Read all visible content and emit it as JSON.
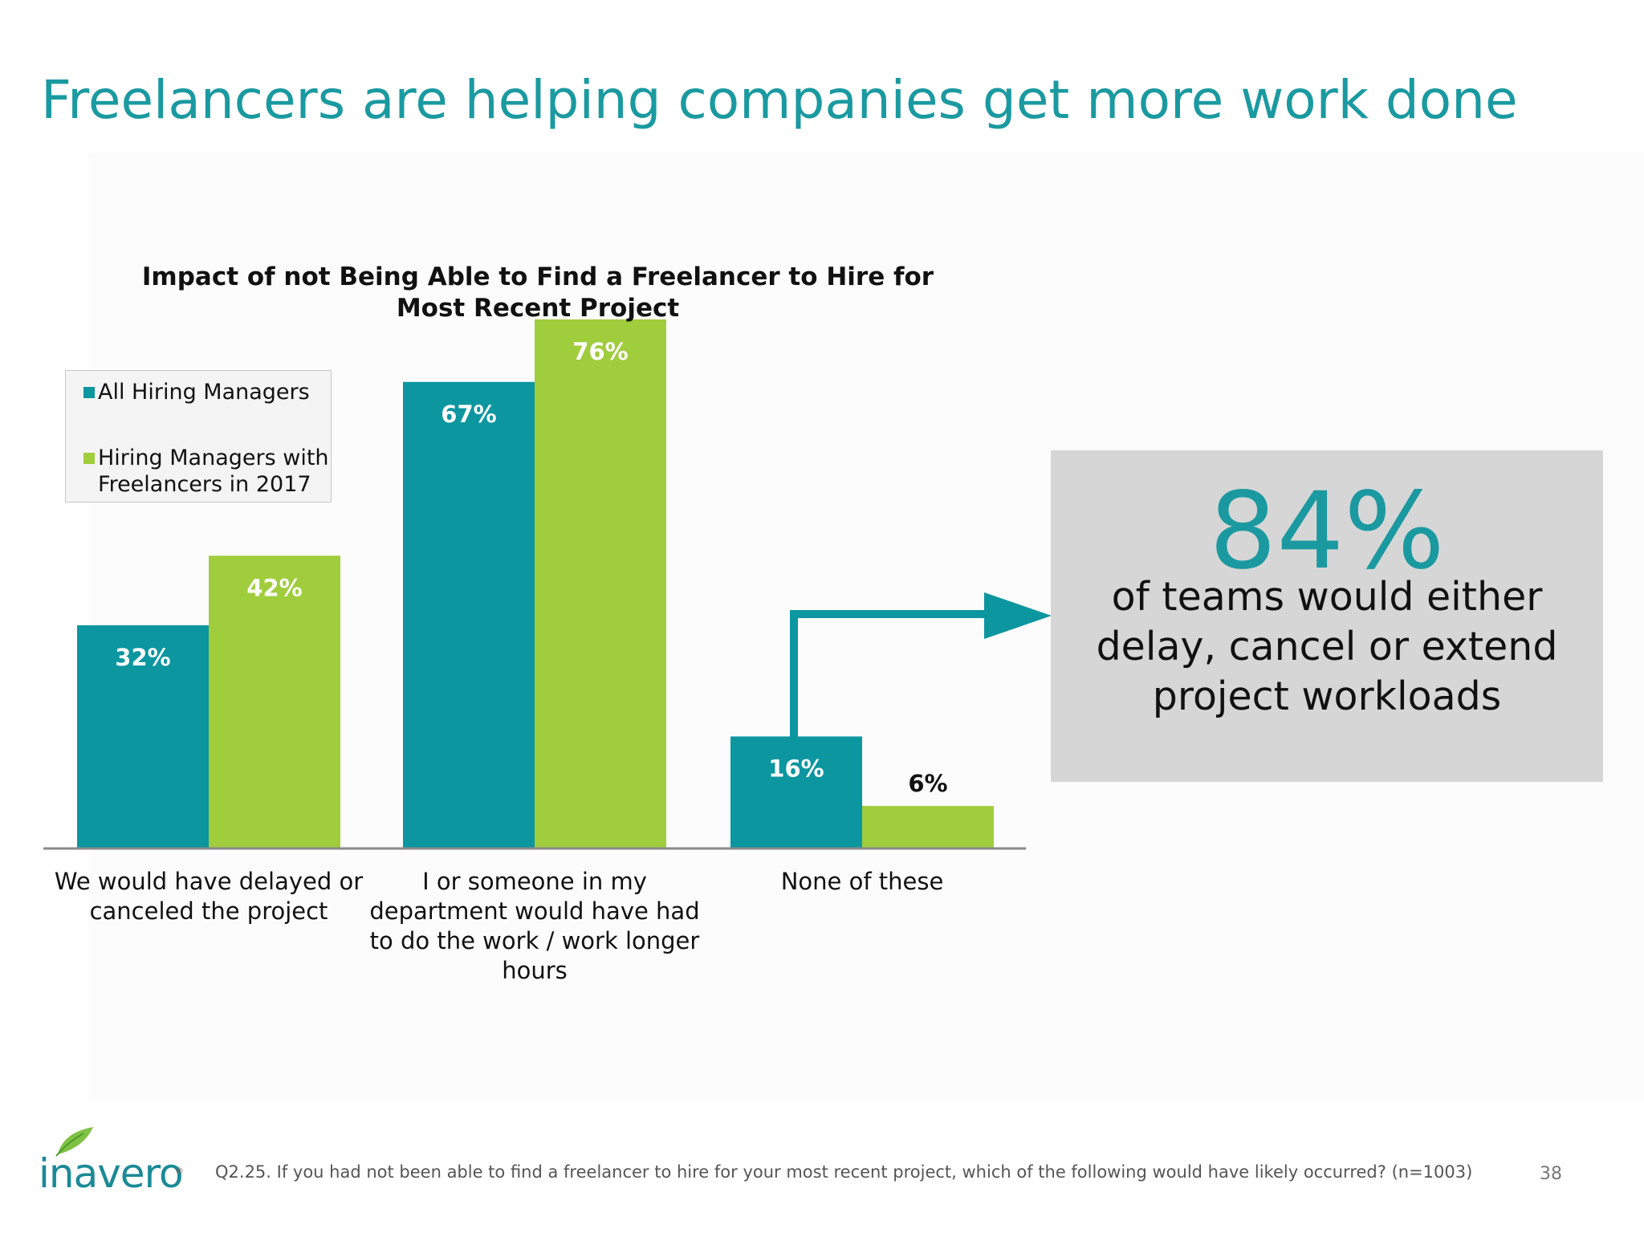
{
  "slide": {
    "title": "Freelancers are helping companies get more work done",
    "footnote": "Q2.25. If you had not been able to find a freelancer to hire for your most recent project, which of the following would have likely occurred? (n=1003)",
    "page_number": "38",
    "logo_text": "inavero",
    "logo_reg": "®"
  },
  "callout": {
    "value": "84%",
    "lines": [
      "of teams would either",
      "delay, cancel or extend",
      "project workloads"
    ]
  },
  "colors": {
    "teal": "#0b96a0",
    "green": "#a0cd3c",
    "title": "#1a9aa0",
    "callout_bg": "#d6d6d6",
    "axis": "#8a8a8a"
  },
  "chart_data": {
    "type": "bar",
    "title_lines": [
      "Impact of not Being Able to Find a Freelancer to Hire for",
      "Most Recent Project"
    ],
    "categories": [
      [
        "We would have delayed or",
        "canceled the project"
      ],
      [
        "I or someone in my",
        "department would have had",
        "to do the work / work longer",
        "hours"
      ],
      [
        "None of these"
      ]
    ],
    "series": [
      {
        "name": "All Hiring Managers",
        "values": [
          32,
          67,
          16
        ],
        "labels": [
          "32%",
          "67%",
          "16%"
        ],
        "color": "#0b96a0"
      },
      {
        "name": "Hiring Managers with Freelancers in 2017",
        "values": [
          42,
          76,
          6
        ],
        "labels": [
          "42%",
          "76%",
          "6%"
        ],
        "color": "#a0cd3c"
      }
    ],
    "legend": {
      "items": [
        {
          "lines": [
            "All Hiring Managers"
          ],
          "color": "#0b96a0"
        },
        {
          "lines": [
            "Hiring Managers with",
            "Freelancers in 2017"
          ],
          "color": "#a0cd3c"
        }
      ],
      "placement": "top-left"
    },
    "ylim": [
      0,
      100
    ],
    "grid": false,
    "xlabel": "",
    "ylabel": ""
  }
}
